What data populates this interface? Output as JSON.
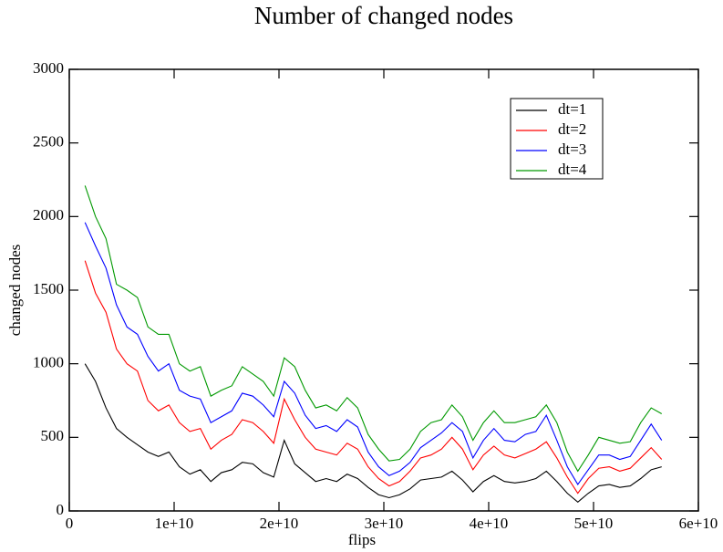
{
  "chart_data": {
    "type": "line",
    "title": "Number of changed nodes",
    "xlabel": "flips",
    "ylabel": "changed nodes",
    "x": [
      1500000000,
      2500000000,
      3500000000,
      4500000000,
      5500000000,
      6500000000,
      7500000000,
      8500000000,
      9500000000,
      10500000000,
      11500000000,
      12500000000,
      13500000000,
      14500000000,
      15500000000,
      16500000000,
      17500000000,
      18500000000,
      19500000000,
      20500000000,
      21500000000,
      22500000000,
      23500000000,
      24500000000,
      25500000000,
      26500000000,
      27500000000,
      28500000000,
      29500000000,
      30500000000,
      31500000000,
      32500000000,
      33500000000,
      34500000000,
      35500000000,
      36500000000,
      37500000000,
      38500000000,
      39500000000,
      40500000000,
      41500000000,
      42500000000,
      43500000000,
      44500000000,
      45500000000,
      46500000000,
      47500000000,
      48500000000,
      49500000000,
      50500000000,
      51500000000,
      52500000000,
      53500000000,
      54500000000,
      55500000000,
      56500000000
    ],
    "series": [
      {
        "name": "dt=1",
        "color": "#000000",
        "values": [
          1000,
          880,
          700,
          560,
          500,
          450,
          400,
          370,
          400,
          300,
          250,
          280,
          200,
          260,
          280,
          330,
          320,
          260,
          230,
          480,
          320,
          260,
          200,
          220,
          200,
          250,
          220,
          160,
          110,
          90,
          110,
          150,
          210,
          220,
          230,
          270,
          210,
          130,
          200,
          240,
          200,
          190,
          200,
          220,
          270,
          200,
          120,
          60,
          120,
          170,
          180,
          160,
          170,
          220,
          280,
          300
        ]
      },
      {
        "name": "dt=2",
        "color": "#ff0000",
        "values": [
          1700,
          1480,
          1350,
          1100,
          1000,
          950,
          750,
          680,
          720,
          600,
          540,
          560,
          420,
          480,
          520,
          620,
          600,
          540,
          460,
          760,
          620,
          500,
          420,
          400,
          380,
          460,
          420,
          300,
          220,
          170,
          200,
          270,
          360,
          380,
          420,
          500,
          420,
          280,
          380,
          440,
          380,
          360,
          390,
          420,
          470,
          360,
          230,
          120,
          220,
          290,
          300,
          270,
          290,
          360,
          430,
          350
        ]
      },
      {
        "name": "dt=3",
        "color": "#0000ff",
        "values": [
          1960,
          1800,
          1650,
          1400,
          1250,
          1200,
          1050,
          950,
          1000,
          820,
          780,
          760,
          600,
          640,
          680,
          800,
          780,
          720,
          640,
          880,
          800,
          650,
          560,
          580,
          540,
          620,
          570,
          400,
          300,
          240,
          270,
          330,
          430,
          480,
          530,
          600,
          540,
          360,
          480,
          560,
          480,
          470,
          520,
          540,
          650,
          480,
          300,
          180,
          280,
          380,
          380,
          350,
          370,
          480,
          590,
          480
        ]
      },
      {
        "name": "dt=4",
        "color": "#009900",
        "values": [
          2210,
          2000,
          1850,
          1540,
          1500,
          1450,
          1250,
          1200,
          1200,
          1000,
          950,
          980,
          780,
          820,
          850,
          980,
          930,
          880,
          780,
          1040,
          980,
          820,
          700,
          720,
          680,
          770,
          700,
          520,
          420,
          340,
          350,
          420,
          540,
          600,
          620,
          720,
          640,
          480,
          600,
          680,
          600,
          600,
          620,
          640,
          720,
          600,
          400,
          270,
          380,
          500,
          480,
          460,
          470,
          600,
          700,
          660
        ]
      }
    ],
    "xlim": [
      0,
      60000000000
    ],
    "ylim": [
      0,
      3000
    ],
    "xticks": [
      0,
      {
        "value": 10000000000,
        "label": "1e+10"
      },
      {
        "value": 20000000000,
        "label": "2e+10"
      },
      {
        "value": 30000000000,
        "label": "3e+10"
      },
      {
        "value": 40000000000,
        "label": "4e+10"
      },
      {
        "value": 50000000000,
        "label": "5e+10"
      },
      {
        "value": 60000000000,
        "label": "6e+10"
      }
    ],
    "yticks": [
      0,
      500,
      1000,
      1500,
      2000,
      2500,
      3000
    ],
    "legend": "upper right"
  }
}
